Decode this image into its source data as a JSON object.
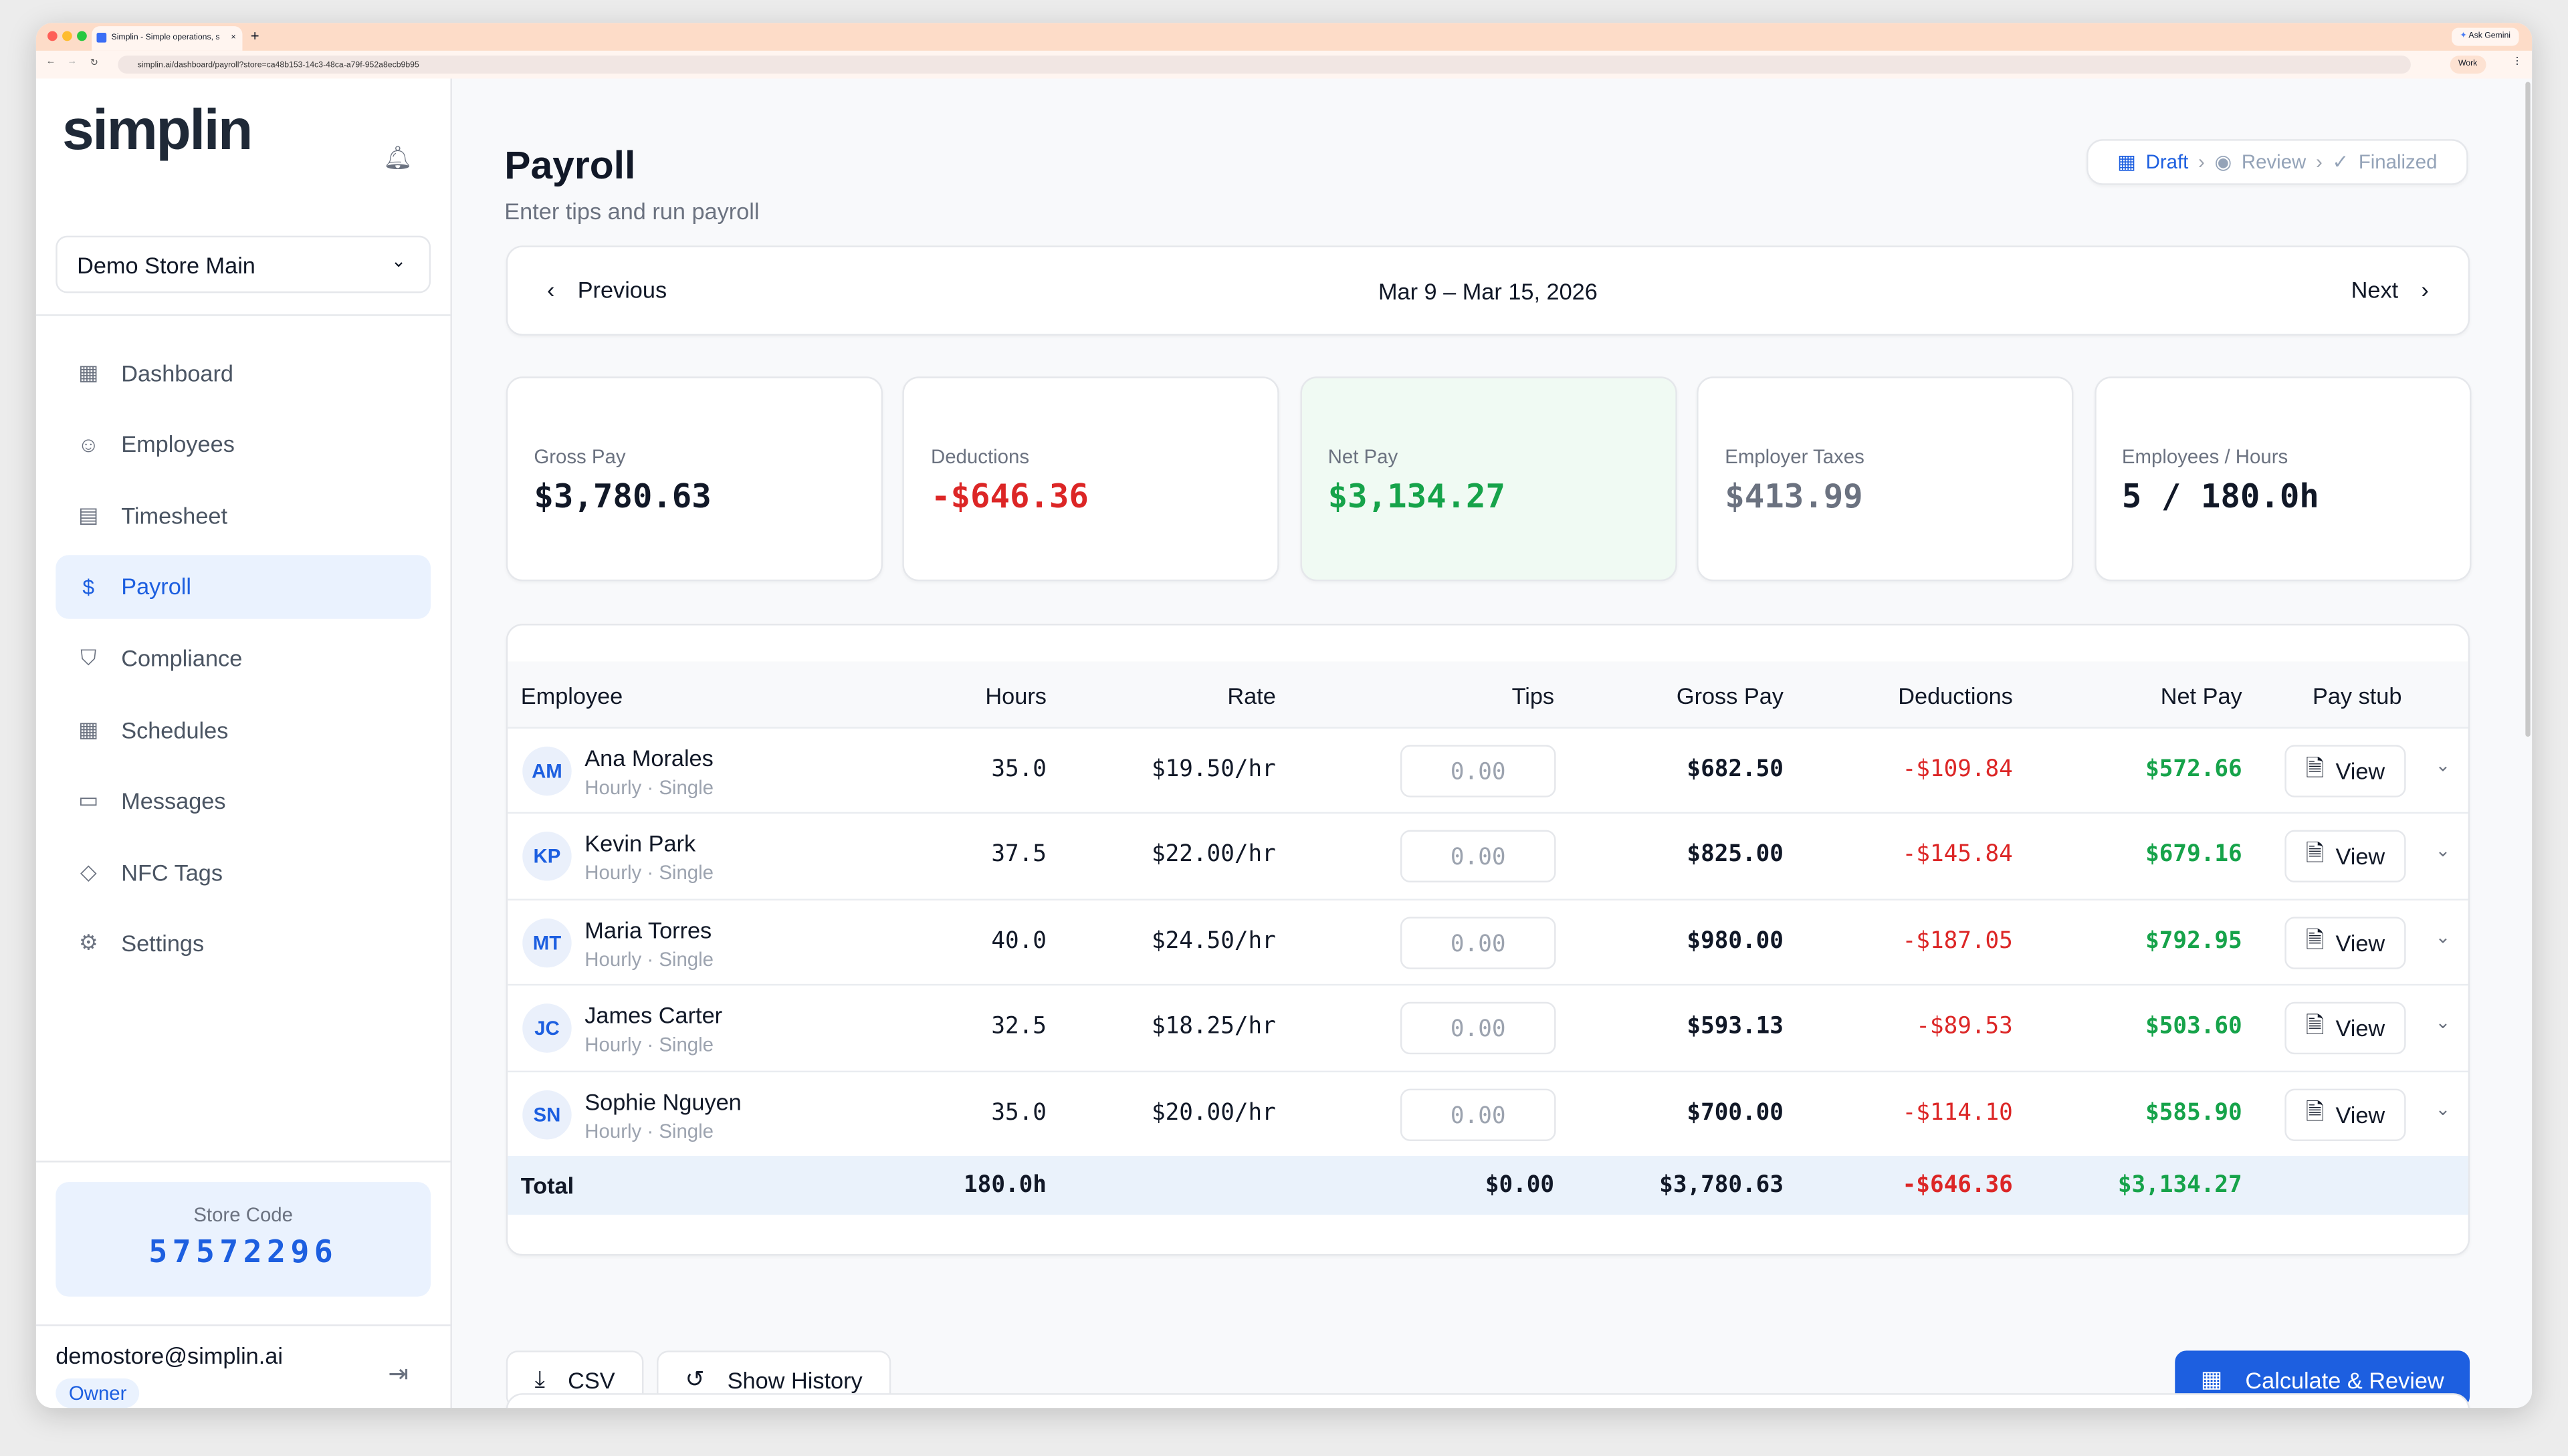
{
  "browser": {
    "tab_title": "Simplin - Simple operations, s",
    "url": "simplin.ai/dashboard/payroll?store=ca48b153-14c3-48ca-a79f-952a8ecb9b95",
    "ask_gemini": "Ask Gemini",
    "profile": "Work"
  },
  "sidebar": {
    "logo": "simplin",
    "store_select": "Demo Store Main",
    "items": [
      {
        "label": "Dashboard",
        "icon": "grid-icon"
      },
      {
        "label": "Employees",
        "icon": "users-icon"
      },
      {
        "label": "Timesheet",
        "icon": "clipboard-icon"
      },
      {
        "label": "Payroll",
        "icon": "dollar-icon",
        "active": true
      },
      {
        "label": "Compliance",
        "icon": "shield-icon"
      },
      {
        "label": "Schedules",
        "icon": "calendar-icon"
      },
      {
        "label": "Messages",
        "icon": "message-icon"
      },
      {
        "label": "NFC Tags",
        "icon": "tag-icon"
      },
      {
        "label": "Settings",
        "icon": "gear-icon"
      }
    ],
    "store_code_label": "Store Code",
    "store_code": "57572296",
    "email": "demostore@simplin.ai",
    "role": "Owner"
  },
  "header": {
    "title": "Payroll",
    "subtitle": "Enter tips and run payroll",
    "steps": [
      {
        "label": "Draft",
        "state": "active"
      },
      {
        "label": "Review",
        "state": "pending"
      },
      {
        "label": "Finalized",
        "state": "pending"
      }
    ]
  },
  "period": {
    "previous": "Previous",
    "range": "Mar 9 – Mar 15, 2026",
    "next": "Next"
  },
  "stats": [
    {
      "label": "Gross Pay",
      "value": "$3,780.63"
    },
    {
      "label": "Deductions",
      "value": "-$646.36"
    },
    {
      "label": "Net Pay",
      "value": "$3,134.27"
    },
    {
      "label": "Employer Taxes",
      "value": "$413.99"
    },
    {
      "label": "Employees / Hours",
      "value": "5 / 180.0h"
    }
  ],
  "table": {
    "headers": [
      "Employee",
      "Hours",
      "Rate",
      "Tips",
      "Gross Pay",
      "Deductions",
      "Net Pay",
      "Pay stub"
    ],
    "rows": [
      {
        "initials": "AM",
        "name": "Ana Morales",
        "type": "Hourly · Single",
        "hours": "35.0",
        "rate": "$19.50/hr",
        "tips": "0.00",
        "gross": "$682.50",
        "deductions": "-$109.84",
        "net": "$572.66",
        "view": "View"
      },
      {
        "initials": "KP",
        "name": "Kevin Park",
        "type": "Hourly · Single",
        "hours": "37.5",
        "rate": "$22.00/hr",
        "tips": "0.00",
        "gross": "$825.00",
        "deductions": "-$145.84",
        "net": "$679.16",
        "view": "View"
      },
      {
        "initials": "MT",
        "name": "Maria Torres",
        "type": "Hourly · Single",
        "hours": "40.0",
        "rate": "$24.50/hr",
        "tips": "0.00",
        "gross": "$980.00",
        "deductions": "-$187.05",
        "net": "$792.95",
        "view": "View"
      },
      {
        "initials": "JC",
        "name": "James Carter",
        "type": "Hourly · Single",
        "hours": "32.5",
        "rate": "$18.25/hr",
        "tips": "0.00",
        "gross": "$593.13",
        "deductions": "-$89.53",
        "net": "$503.60",
        "view": "View"
      },
      {
        "initials": "SN",
        "name": "Sophie Nguyen",
        "type": "Hourly · Single",
        "hours": "35.0",
        "rate": "$20.00/hr",
        "tips": "0.00",
        "gross": "$700.00",
        "deductions": "-$114.10",
        "net": "$585.90",
        "view": "View"
      }
    ],
    "total": {
      "label": "Total",
      "hours": "180.0h",
      "tips": "$0.00",
      "gross": "$3,780.63",
      "deductions": "-$646.36",
      "net": "$3,134.27"
    }
  },
  "actions": {
    "csv": "CSV",
    "history": "Show History",
    "calculate": "Calculate & Review"
  },
  "colors": {
    "accent": "#1d5fe0",
    "negative": "#dc2626",
    "positive": "#16a34a"
  }
}
